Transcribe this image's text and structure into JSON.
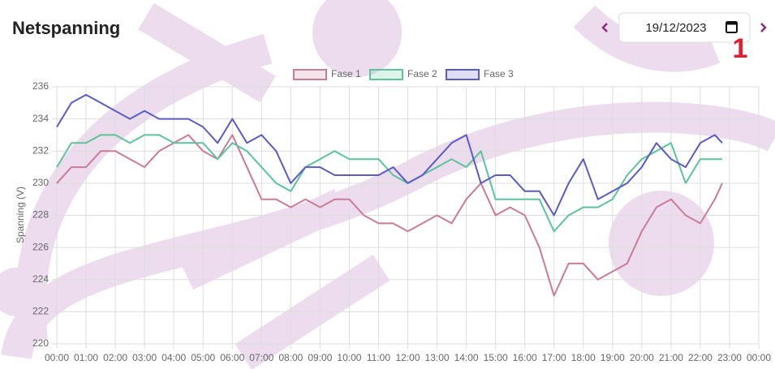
{
  "header": {
    "title": "Netspanning",
    "date": "19/12/2023",
    "badge": "1"
  },
  "chart_data": {
    "type": "line",
    "y_label": "Spanning (V)",
    "x": [
      0,
      0.5,
      1,
      1.5,
      2,
      2.5,
      3,
      3.5,
      4,
      4.5,
      5,
      5.5,
      6,
      6.5,
      7,
      7.5,
      8,
      8.5,
      9,
      9.5,
      10,
      10.5,
      11,
      11.5,
      12,
      12.5,
      13,
      13.5,
      14,
      14.5,
      15,
      15.5,
      16,
      16.5,
      17,
      17.5,
      18,
      18.5,
      19,
      19.5,
      20,
      20.5,
      21,
      21.5,
      22,
      22.5,
      22.75
    ],
    "series": [
      {
        "name": "Fase 1",
        "color": "#c97b98",
        "values": [
          230,
          231,
          231,
          232,
          232,
          231.5,
          231,
          232,
          232.5,
          233,
          232,
          231.5,
          233,
          231,
          229,
          229,
          228.5,
          229,
          228.5,
          229,
          229,
          228,
          227.5,
          227.5,
          227,
          227.5,
          228,
          227.5,
          229,
          230,
          228,
          228.5,
          228,
          226,
          223,
          225,
          225,
          224,
          224.5,
          225,
          227,
          228.5,
          229,
          228,
          227.5,
          229,
          230
        ]
      },
      {
        "name": "Fase 2",
        "color": "#5cc39a",
        "values": [
          231,
          232.5,
          232.5,
          233,
          233,
          232.5,
          233,
          233,
          232.5,
          232.5,
          232.5,
          231.5,
          232.5,
          232,
          231,
          230,
          229.5,
          231,
          231.5,
          232,
          231.5,
          231.5,
          231.5,
          230.5,
          230,
          230.5,
          231,
          231.5,
          231,
          232,
          229,
          229,
          229,
          229,
          227,
          228,
          228.5,
          228.5,
          229,
          230.5,
          231.5,
          232,
          232.5,
          230,
          231.5,
          231.5,
          231.5
        ]
      },
      {
        "name": "Fase 3",
        "color": "#5b5bc6",
        "values": [
          233.5,
          235,
          235.5,
          235,
          234.5,
          234,
          234.5,
          234,
          234,
          234,
          233.5,
          232.5,
          234,
          232.5,
          233,
          232,
          230,
          231,
          231,
          230.5,
          230.5,
          230.5,
          230.5,
          231,
          230,
          230.5,
          231.5,
          232.5,
          233,
          230,
          230.5,
          230.5,
          229.5,
          229.5,
          228,
          230,
          231.5,
          229,
          229.5,
          230,
          231,
          232.5,
          231.5,
          231,
          232.5,
          233,
          232.5
        ]
      }
    ],
    "xlim": [
      0,
      24
    ],
    "xticks": [
      {
        "value": 0,
        "label": "00:00"
      },
      {
        "value": 1,
        "label": "01:00"
      },
      {
        "value": 2,
        "label": "02:00"
      },
      {
        "value": 3,
        "label": "03:00"
      },
      {
        "value": 4,
        "label": "04:00"
      },
      {
        "value": 5,
        "label": "05:00"
      },
      {
        "value": 6,
        "label": "06:00"
      },
      {
        "value": 7,
        "label": "07:00"
      },
      {
        "value": 8,
        "label": "08:00"
      },
      {
        "value": 9,
        "label": "09:00"
      },
      {
        "value": 10,
        "label": "10:00"
      },
      {
        "value": 11,
        "label": "11:00"
      },
      {
        "value": 12,
        "label": "12:00"
      },
      {
        "value": 13,
        "label": "13:00"
      },
      {
        "value": 14,
        "label": "14:00"
      },
      {
        "value": 15,
        "label": "15:00"
      },
      {
        "value": 16,
        "label": "16:00"
      },
      {
        "value": 17,
        "label": "17:00"
      },
      {
        "value": 18,
        "label": "18:00"
      },
      {
        "value": 19,
        "label": "19:00"
      },
      {
        "value": 20,
        "label": "20:00"
      },
      {
        "value": 21,
        "label": "21:00"
      },
      {
        "value": 22,
        "label": "22:00"
      },
      {
        "value": 23,
        "label": "23:00"
      },
      {
        "value": 24,
        "label": "00:00"
      }
    ],
    "ylim": [
      220,
      236
    ],
    "yticks": [
      220,
      222,
      224,
      226,
      228,
      230,
      232,
      234,
      236
    ],
    "grid": true,
    "legend": "top"
  }
}
